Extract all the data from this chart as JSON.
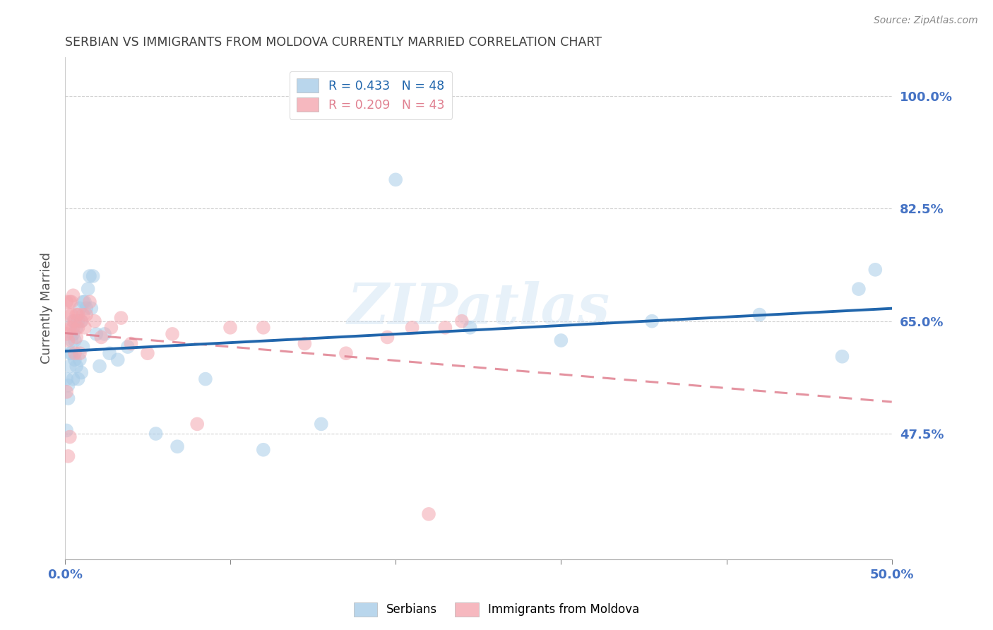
{
  "title": "SERBIAN VS IMMIGRANTS FROM MOLDOVA CURRENTLY MARRIED CORRELATION CHART",
  "source": "Source: ZipAtlas.com",
  "ylabel": "Currently Married",
  "ytick_labels": [
    "47.5%",
    "65.0%",
    "82.5%",
    "100.0%"
  ],
  "ytick_values": [
    0.475,
    0.65,
    0.825,
    1.0
  ],
  "xlim": [
    0.0,
    0.5
  ],
  "ylim": [
    0.28,
    1.06
  ],
  "watermark": "ZIPatlas",
  "legend_serbian": "R = 0.433   N = 48",
  "legend_moldova": "R = 0.209   N = 43",
  "legend_label1": "Serbians",
  "legend_label2": "Immigrants from Moldova",
  "serbian_color": "#a8cce8",
  "moldova_color": "#f4a7b0",
  "serbian_line_color": "#2166ac",
  "moldova_line_color": "#e08090",
  "axis_label_color": "#4472c4",
  "title_color": "#404040",
  "serbian_x": [
    0.001,
    0.001,
    0.002,
    0.002,
    0.003,
    0.003,
    0.004,
    0.004,
    0.005,
    0.005,
    0.005,
    0.006,
    0.006,
    0.007,
    0.007,
    0.008,
    0.008,
    0.009,
    0.009,
    0.01,
    0.01,
    0.011,
    0.011,
    0.012,
    0.013,
    0.014,
    0.015,
    0.016,
    0.017,
    0.019,
    0.021,
    0.024,
    0.027,
    0.032,
    0.038,
    0.055,
    0.068,
    0.085,
    0.12,
    0.155,
    0.2,
    0.245,
    0.3,
    0.355,
    0.42,
    0.47,
    0.48,
    0.49
  ],
  "serbian_y": [
    0.56,
    0.48,
    0.55,
    0.53,
    0.6,
    0.58,
    0.62,
    0.6,
    0.63,
    0.65,
    0.56,
    0.59,
    0.62,
    0.64,
    0.58,
    0.56,
    0.65,
    0.59,
    0.67,
    0.57,
    0.65,
    0.68,
    0.61,
    0.68,
    0.67,
    0.7,
    0.72,
    0.67,
    0.72,
    0.63,
    0.58,
    0.63,
    0.6,
    0.59,
    0.61,
    0.475,
    0.455,
    0.56,
    0.45,
    0.49,
    0.87,
    0.64,
    0.62,
    0.65,
    0.66,
    0.595,
    0.7,
    0.73
  ],
  "moldova_x": [
    0.001,
    0.001,
    0.001,
    0.002,
    0.002,
    0.002,
    0.003,
    0.003,
    0.003,
    0.004,
    0.004,
    0.004,
    0.005,
    0.005,
    0.006,
    0.006,
    0.007,
    0.007,
    0.008,
    0.008,
    0.009,
    0.01,
    0.011,
    0.012,
    0.013,
    0.015,
    0.018,
    0.022,
    0.028,
    0.034,
    0.04,
    0.05,
    0.065,
    0.08,
    0.1,
    0.12,
    0.145,
    0.17,
    0.195,
    0.21,
    0.22,
    0.23,
    0.24
  ],
  "moldova_y": [
    0.54,
    0.63,
    0.68,
    0.44,
    0.66,
    0.62,
    0.47,
    0.64,
    0.68,
    0.64,
    0.66,
    0.68,
    0.64,
    0.69,
    0.65,
    0.6,
    0.66,
    0.625,
    0.66,
    0.64,
    0.6,
    0.65,
    0.66,
    0.64,
    0.66,
    0.68,
    0.65,
    0.625,
    0.64,
    0.655,
    0.615,
    0.6,
    0.63,
    0.49,
    0.64,
    0.64,
    0.615,
    0.6,
    0.625,
    0.64,
    0.35,
    0.64,
    0.65
  ]
}
